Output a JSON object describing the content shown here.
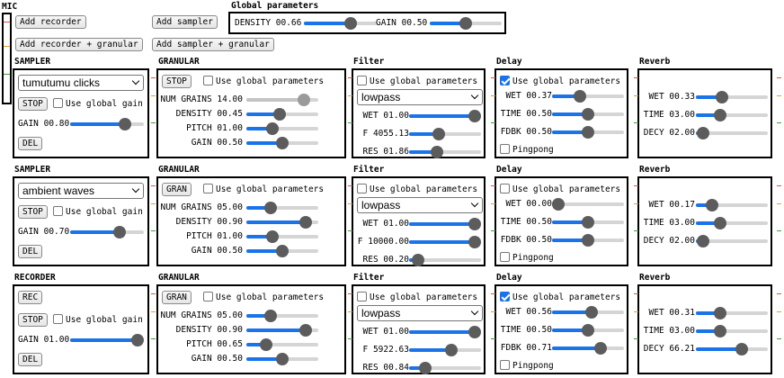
{
  "top": {
    "mic_label": "MIC",
    "add_recorder": "Add recorder",
    "add_recorder_granular": "Add recorder + granular",
    "add_sampler": "Add sampler",
    "add_sampler_granular": "Add sampler + granular",
    "global_title": "Global parameters",
    "density_label": "DENSITY 00.66",
    "density_value": 0.66,
    "gain_label": "GAIN 00.50",
    "gain_value": 0.5
  },
  "common": {
    "use_global_params": "Use global parameters",
    "use_global_gain": "Use global gain",
    "pingpong": "Pingpong",
    "del": "DEL"
  },
  "rows": [
    {
      "source": {
        "title": "SAMPLER",
        "dropdown": "tumutumu clicks",
        "main_button": "STOP",
        "stop_button": null,
        "gain_label": "GAIN 00.80",
        "gain": 0.8
      },
      "granular": {
        "title": "GRANULAR",
        "button": "STOP",
        "use_global": false,
        "params": [
          {
            "label": "NUM GRAINS 14.00",
            "value": 0.87,
            "disabled": true
          },
          {
            "label": "DENSITY 00.45",
            "value": 0.45
          },
          {
            "label": "PITCH 01.00",
            "value": 0.34
          },
          {
            "label": "GAIN 00.50",
            "value": 0.5
          }
        ]
      },
      "filter": {
        "title": "Filter",
        "use_global": false,
        "type": "lowpass",
        "params": [
          {
            "label": "WET 01.00",
            "value": 1.0
          },
          {
            "label": "F 4055.13",
            "value": 0.4
          },
          {
            "label": "RES 01.86",
            "value": 0.37
          }
        ]
      },
      "delay": {
        "title": "Delay",
        "use_global": true,
        "pingpong": false,
        "params": [
          {
            "label": "WET 00.37",
            "value": 0.37
          },
          {
            "label": "TIME 00.50",
            "value": 0.5
          },
          {
            "label": "FDBK 00.50",
            "value": 0.5
          }
        ]
      },
      "reverb": {
        "title": "Reverb",
        "params": [
          {
            "label": "WET 00.33",
            "value": 0.33
          },
          {
            "label": "TIME 03.00",
            "value": 0.3
          },
          {
            "label": "DECY 02.00",
            "value": 0.02
          }
        ]
      }
    },
    {
      "source": {
        "title": "SAMPLER",
        "dropdown": "ambient waves",
        "main_button": "STOP",
        "stop_button": null,
        "gain_label": "GAIN 00.70",
        "gain": 0.7
      },
      "granular": {
        "title": "GRANULAR",
        "button": "GRAN",
        "use_global": false,
        "params": [
          {
            "label": "NUM GRAINS 05.00",
            "value": 0.3
          },
          {
            "label": "DENSITY 00.90",
            "value": 0.9
          },
          {
            "label": "PITCH 01.00",
            "value": 0.34
          },
          {
            "label": "GAIN 00.50",
            "value": 0.5
          }
        ]
      },
      "filter": {
        "title": "Filter",
        "use_global": false,
        "type": "lowpass",
        "params": [
          {
            "label": "WET 01.00",
            "value": 1.0
          },
          {
            "label": "F 10000.00",
            "value": 1.0
          },
          {
            "label": "RES 00.20",
            "value": 0.04
          }
        ]
      },
      "delay": {
        "title": "Delay",
        "use_global": false,
        "pingpong": false,
        "params": [
          {
            "label": "WET 00.00",
            "value": 0.0
          },
          {
            "label": "TIME 00.50",
            "value": 0.5
          },
          {
            "label": "FDBK 00.50",
            "value": 0.5
          }
        ]
      },
      "reverb": {
        "title": "Reverb",
        "params": [
          {
            "label": "WET 00.17",
            "value": 0.17
          },
          {
            "label": "TIME 03.00",
            "value": 0.3
          },
          {
            "label": "DECY 02.00",
            "value": 0.02
          }
        ]
      }
    },
    {
      "source": {
        "title": "RECORDER",
        "dropdown": null,
        "main_button": "REC",
        "stop_button": "STOP",
        "gain_label": "GAIN 01.00",
        "gain": 1.0
      },
      "granular": {
        "title": "GRANULAR",
        "button": "GRAN",
        "use_global": false,
        "params": [
          {
            "label": "NUM GRAINS 05.00",
            "value": 0.3
          },
          {
            "label": "DENSITY 00.90",
            "value": 0.9
          },
          {
            "label": "PITCH 00.65",
            "value": 0.22
          },
          {
            "label": "GAIN 00.50",
            "value": 0.5
          }
        ]
      },
      "filter": {
        "title": "Filter",
        "use_global": false,
        "type": "lowpass",
        "params": [
          {
            "label": "WET 01.00",
            "value": 1.0
          },
          {
            "label": "F 5922.63",
            "value": 0.6
          },
          {
            "label": "RES 00.84",
            "value": 0.16
          }
        ]
      },
      "delay": {
        "title": "Delay",
        "use_global": true,
        "pingpong": false,
        "params": [
          {
            "label": "WET 00.56",
            "value": 0.56
          },
          {
            "label": "TIME 00.50",
            "value": 0.5
          },
          {
            "label": "FDBK 00.71",
            "value": 0.71
          }
        ]
      },
      "reverb": {
        "title": "Reverb",
        "params": [
          {
            "label": "WET 00.31",
            "value": 0.31
          },
          {
            "label": "TIME 03.00",
            "value": 0.3
          },
          {
            "label": "DECY 66.21",
            "value": 0.66
          }
        ]
      }
    }
  ]
}
